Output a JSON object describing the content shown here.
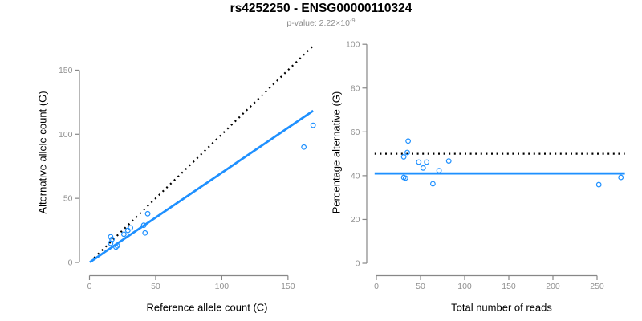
{
  "figure": {
    "title": "rs4252250 - ENSG00000110324",
    "subtitle_prefix": "p-value: 2.22×10",
    "subtitle_exponent": "-9"
  },
  "colors": {
    "accent_blue": "#1E90FF",
    "line_black": "#000000",
    "axis_gray": "#878787",
    "tick_label_gray": "#919191"
  },
  "chart_data": [
    {
      "type": "scatter",
      "xlabel": "Reference allele count (C)",
      "ylabel": "Alternative allele count (G)",
      "xticks": [
        0,
        50,
        100,
        150
      ],
      "yticks": [
        0,
        50,
        100,
        150
      ],
      "xlim": [
        0,
        170
      ],
      "ylim": [
        0,
        170
      ],
      "grid": false,
      "points": [
        [
          16,
          20
        ],
        [
          17,
          18
        ],
        [
          16,
          15
        ],
        [
          20,
          12
        ],
        [
          21,
          13
        ],
        [
          26,
          22
        ],
        [
          29,
          25
        ],
        [
          31,
          27
        ],
        [
          41,
          29
        ],
        [
          42,
          23
        ],
        [
          44,
          38
        ],
        [
          162,
          90
        ],
        [
          169,
          107
        ]
      ],
      "lines": [
        {
          "role": "identity-line",
          "slope": 1,
          "intercept": 0,
          "x1": 3.5,
          "x2": 168.5,
          "color": "#000000",
          "dotted": true
        },
        {
          "role": "fit-line",
          "slope": 0.7,
          "intercept": 0,
          "x1": 0.3,
          "x2": 169,
          "color": "#1E90FF",
          "dotted": false
        }
      ]
    },
    {
      "type": "scatter",
      "xlabel": "Total number of reads",
      "ylabel": "Percentage alternative (G)",
      "xticks": [
        0,
        50,
        100,
        150,
        200,
        250
      ],
      "yticks": [
        0,
        20,
        40,
        60,
        80,
        100
      ],
      "xlim": [
        0,
        282
      ],
      "ylim": [
        0,
        100
      ],
      "grid": false,
      "points": [
        [
          36,
          55.8
        ],
        [
          35,
          50.6
        ],
        [
          31,
          48.6
        ],
        [
          48,
          46.2
        ],
        [
          57,
          46.2
        ],
        [
          53,
          43.5
        ],
        [
          71,
          42.3
        ],
        [
          82,
          46.7
        ],
        [
          31,
          39.2
        ],
        [
          33,
          38.9
        ],
        [
          64,
          36.3
        ],
        [
          252,
          35.9
        ],
        [
          277,
          39.2
        ]
      ],
      "lines": [
        {
          "role": "null-line",
          "hline": 50,
          "x1": -2,
          "x2": 281.5,
          "color": "#000000",
          "dotted": true
        },
        {
          "role": "fit-line",
          "hline": 41,
          "x1": -2,
          "x2": 281.5,
          "color": "#1E90FF",
          "dotted": false
        }
      ]
    }
  ]
}
